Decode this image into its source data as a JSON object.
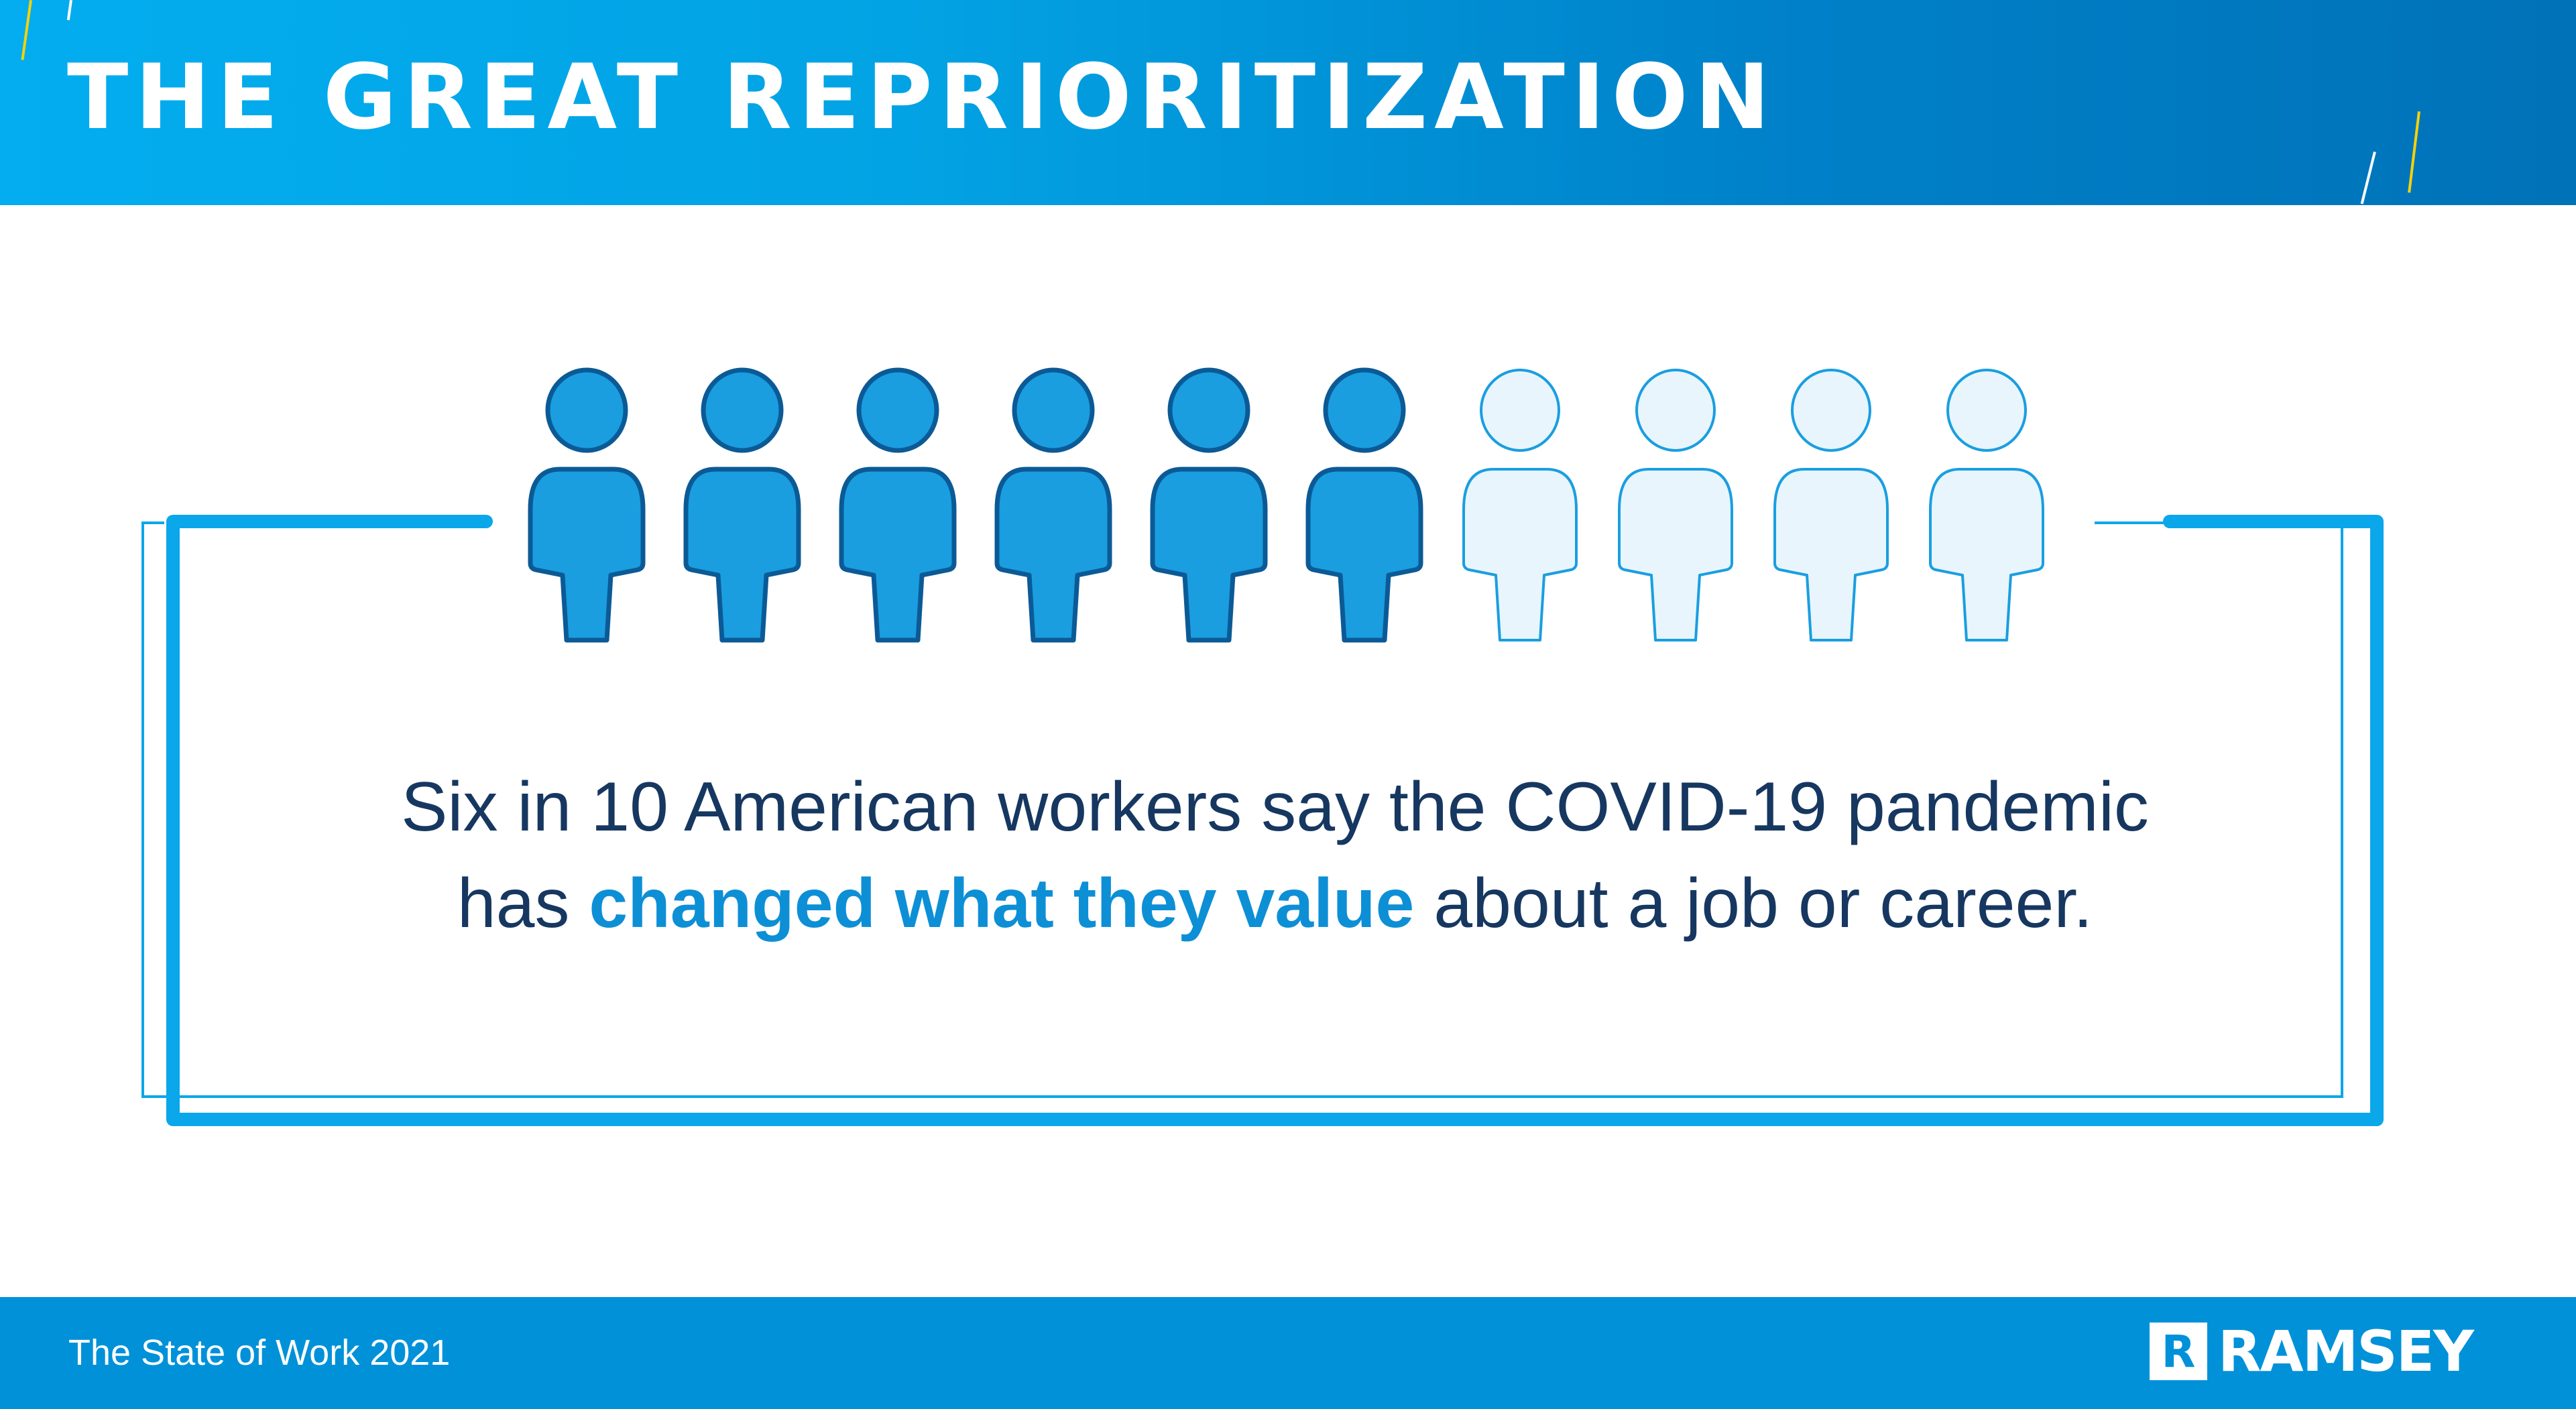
{
  "header": {
    "title": "THE GREAT REPRIORITIZATION"
  },
  "pictogram": {
    "total": 10,
    "highlighted": 6,
    "highlight_color": "#1a9ee0",
    "muted_color": "#e8f5fc",
    "outline_color": "#0b5a96"
  },
  "statement": {
    "line1": "Six in 10 American workers say the COVID-19 pandemic",
    "line2_before": "has ",
    "line2_highlight": "changed what they value",
    "line2_after": " about a job or career."
  },
  "footer": {
    "source": "The State of Work 2021",
    "logo_text": "RAMSEY",
    "logo_mark": "R"
  },
  "colors": {
    "brand_blue": "#0091d9",
    "navy_text": "#163760",
    "accent_yellow": "#f5d20a"
  }
}
